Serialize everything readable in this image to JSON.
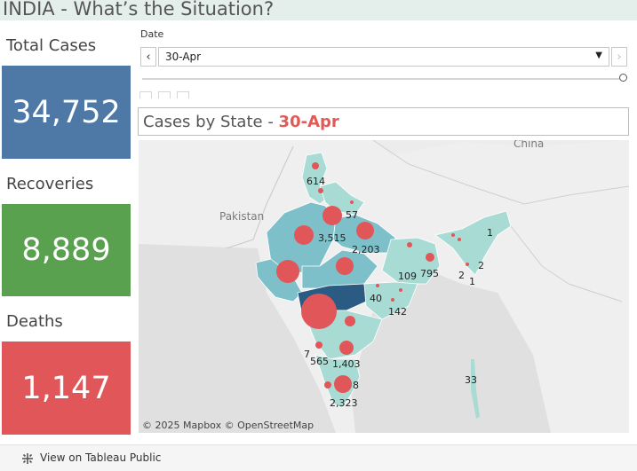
{
  "header": {
    "title": "INDIA - What’s the Situation?"
  },
  "kpis": {
    "total": {
      "label": "Total Cases",
      "value": "34,752",
      "color": "#4e79a7"
    },
    "recoveries": {
      "label": "Recoveries",
      "value": "8,889",
      "color": "#59a14f"
    },
    "deaths": {
      "label": "Deaths",
      "value": "1,147",
      "color": "#e15759"
    }
  },
  "filter": {
    "label": "Date",
    "selected": "30-Apr",
    "prev_icon": "chevron-left-icon",
    "next_icon": "chevron-right-icon",
    "dropdown_icon": "caret-down-icon",
    "slider_position": 1.0
  },
  "map": {
    "title_prefix": "Cases by State - ",
    "title_date": "30-Apr",
    "attribution": "© 2025 Mapbox  © OpenStreetMap",
    "place_labels": {
      "china": "China",
      "pakistan": "Pakistan"
    },
    "state_labels": {
      "jk": "614",
      "up_north": "57",
      "delhi": "3,515",
      "mp": "2,203",
      "bihar": "795",
      "jharkhand": "109",
      "arunachal": "1",
      "assam_a": "2",
      "assam_b": "2",
      "mizoram": "1",
      "chhattisgarh": "40",
      "odisha": "142",
      "goa": "7",
      "karnataka": "565",
      "telangana_ap": "1,403",
      "kerala": "8",
      "tamilnadu": "2,323",
      "andaman": "33"
    },
    "colors": {
      "bubble": "#e15759",
      "state_light": "#a8dbd3",
      "state_mid": "#7ec0c9",
      "state_dark": "#2b5a83"
    }
  },
  "footer": {
    "link_label": "View on Tableau Public",
    "icon": "tableau-icon"
  }
}
